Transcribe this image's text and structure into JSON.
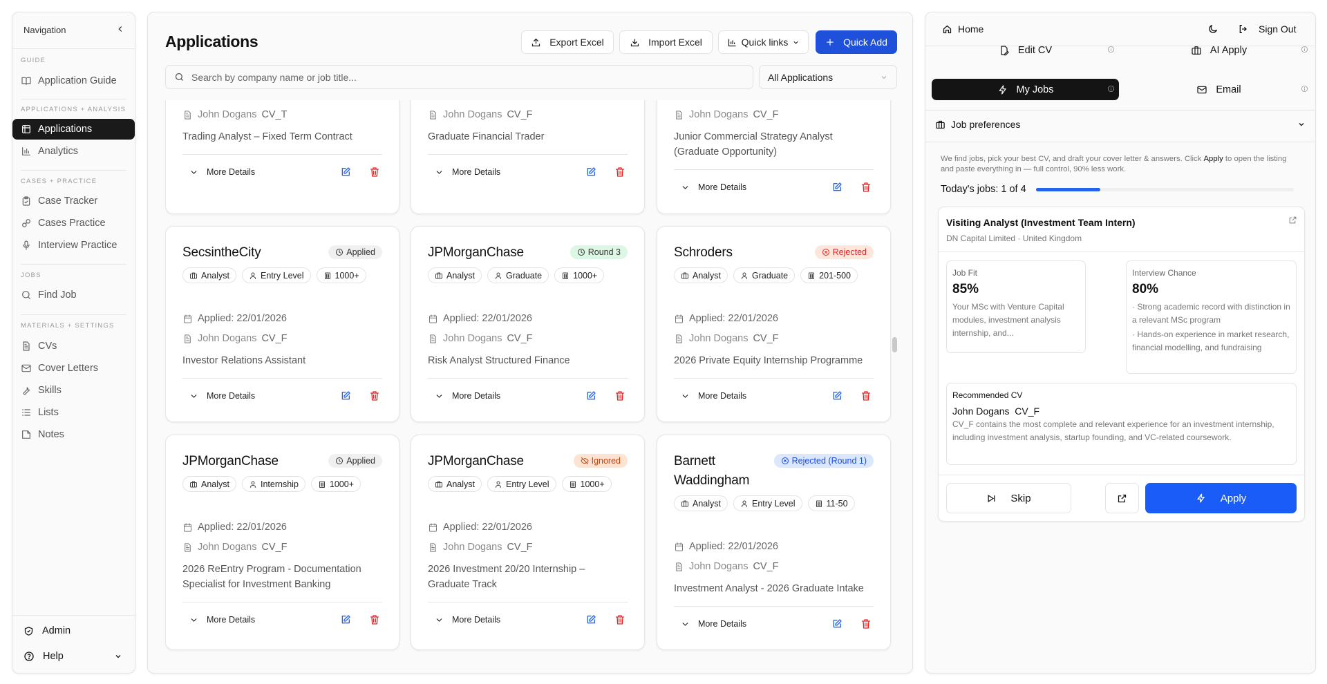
{
  "sidebar": {
    "title": "Navigation",
    "sections": [
      {
        "label": "GUIDE",
        "items": [
          {
            "label": "Application Guide",
            "icon": "book-open-icon"
          }
        ]
      },
      {
        "label": "APPLICATIONS + ANALYSIS",
        "items": [
          {
            "label": "Applications",
            "icon": "table-icon",
            "active": true
          },
          {
            "label": "Analytics",
            "icon": "bar-chart-icon"
          }
        ]
      },
      {
        "label": "CASES + PRACTICE",
        "items": [
          {
            "label": "Case Tracker",
            "icon": "clipboard-check-icon"
          },
          {
            "label": "Cases Practice",
            "icon": "puzzle-icon"
          },
          {
            "label": "Interview Practice",
            "icon": "microphone-icon"
          }
        ]
      },
      {
        "label": "JOBS",
        "items": [
          {
            "label": "Find Job",
            "icon": "search-icon"
          }
        ]
      },
      {
        "label": "MATERIALS + SETTINGS",
        "items": [
          {
            "label": "CVs",
            "icon": "file-text-icon"
          },
          {
            "label": "Cover Letters",
            "icon": "mail-icon"
          },
          {
            "label": "Skills",
            "icon": "wrench-icon"
          },
          {
            "label": "Lists",
            "icon": "list-icon"
          },
          {
            "label": "Notes",
            "icon": "sticky-note-icon"
          }
        ]
      }
    ],
    "admin": "Admin",
    "help": "Help"
  },
  "main": {
    "title": "Applications",
    "buttons": {
      "export": "Export Excel",
      "import": "Import Excel",
      "quick_links": "Quick links",
      "quick_add": "Quick Add"
    },
    "search_placeholder": "Search by company name or job title...",
    "filter": "All Applications",
    "more_details": "More Details",
    "cards_top_row": [
      {
        "cv_owner": "John Dogans",
        "cv": "CV_T",
        "role": "Trading Analyst – Fixed Term Contract"
      },
      {
        "cv_owner": "John Dogans",
        "cv": "CV_F",
        "role": "Graduate Financial Trader"
      },
      {
        "cv_owner": "John Dogans",
        "cv": "CV_F",
        "role": "Junior Commercial Strategy Analyst (Graduate Opportunity)"
      }
    ],
    "cards": [
      {
        "company": "SecsintheCity",
        "status": "Applied",
        "status_type": "applied",
        "chips": [
          "Analyst",
          "Entry Level",
          "1000+"
        ],
        "applied": "Applied: 22/01/2026",
        "cv_owner": "John Dogans",
        "cv": "CV_F",
        "role": "Investor Relations Assistant"
      },
      {
        "company": "JPMorganChase",
        "status": "Round 3",
        "status_type": "round",
        "chips": [
          "Analyst",
          "Graduate",
          "1000+"
        ],
        "applied": "Applied: 22/01/2026",
        "cv_owner": "John Dogans",
        "cv": "CV_F",
        "role": "Risk Analyst Structured Finance"
      },
      {
        "company": "Schroders",
        "status": "Rejected",
        "status_type": "rejected",
        "chips": [
          "Analyst",
          "Graduate",
          "201-500"
        ],
        "applied": "Applied: 22/01/2026",
        "cv_owner": "John Dogans",
        "cv": "CV_F",
        "role": "2026 Private Equity Internship Programme"
      },
      {
        "company": "JPMorganChase",
        "status": "Applied",
        "status_type": "applied",
        "chips": [
          "Analyst",
          "Internship",
          "1000+"
        ],
        "applied": "Applied: 22/01/2026",
        "cv_owner": "John Dogans",
        "cv": "CV_F",
        "role": "2026 ReEntry Program - Documentation Specialist for Investment Banking"
      },
      {
        "company": "JPMorganChase",
        "status": "Ignored",
        "status_type": "ignored",
        "chips": [
          "Analyst",
          "Entry Level",
          "1000+"
        ],
        "applied": "Applied: 22/01/2026",
        "cv_owner": "John Dogans",
        "cv": "CV_F",
        "role": "2026 Investment 20/20 Internship – Graduate Track"
      },
      {
        "company": "Barnett Waddingham",
        "status": "Rejected (Round 1)",
        "status_type": "rejected-round",
        "chips": [
          "Analyst",
          "Entry Level",
          "11-50"
        ],
        "applied": "Applied: 22/01/2026",
        "cv_owner": "John Dogans",
        "cv": "CV_F",
        "role": "Investment Analyst - 2026 Graduate Intake"
      }
    ]
  },
  "right": {
    "home": "Home",
    "sign_out": "Sign Out",
    "tabs": [
      {
        "label": "Edit CV",
        "icon": "file-edit-icon"
      },
      {
        "label": "AI Apply",
        "icon": "briefcase-icon"
      },
      {
        "label": "My Jobs",
        "icon": "zap-icon",
        "active": true
      },
      {
        "label": "Email",
        "icon": "mail-icon"
      }
    ],
    "job_preferences": "Job preferences",
    "description_pre": "We find jobs, pick your best CV, and draft your cover letter & answers. Click ",
    "description_bold": "Apply",
    "description_post": " to open the listing and paste everything in — full control, 90% less work.",
    "todays_jobs": "Today's jobs: 1 of 4",
    "progress": 0.25,
    "job": {
      "title": "Visiting Analyst (Investment Team Intern)",
      "company": "DN Capital Limited · United Kingdom",
      "fit_label": "Job Fit",
      "fit_value": "85%",
      "fit_text": "Your MSc with Venture Capital modules, investment analysis internship, and...",
      "chance_label": "Interview Chance",
      "chance_value": "80%",
      "chance_points": [
        "· Strong academic record with distinction in a relevant MSc program",
        "· Hands-on experience in market research, financial modelling, and fundraising"
      ],
      "rec_label": "Recommended CV",
      "rec_cv": "John Dogans  CV_F",
      "rec_text": "CV_F contains the most complete and relevant experience for an investment internship, including investment analysis, startup founding, and VC-related coursework.",
      "skip": "Skip",
      "apply": "Apply"
    }
  },
  "colors": {
    "accent": "#1e50d9",
    "apply": "#1a5cf7",
    "active_nav": "#1a1a1a",
    "edit": "#2563eb",
    "delete": "#dc2626"
  }
}
